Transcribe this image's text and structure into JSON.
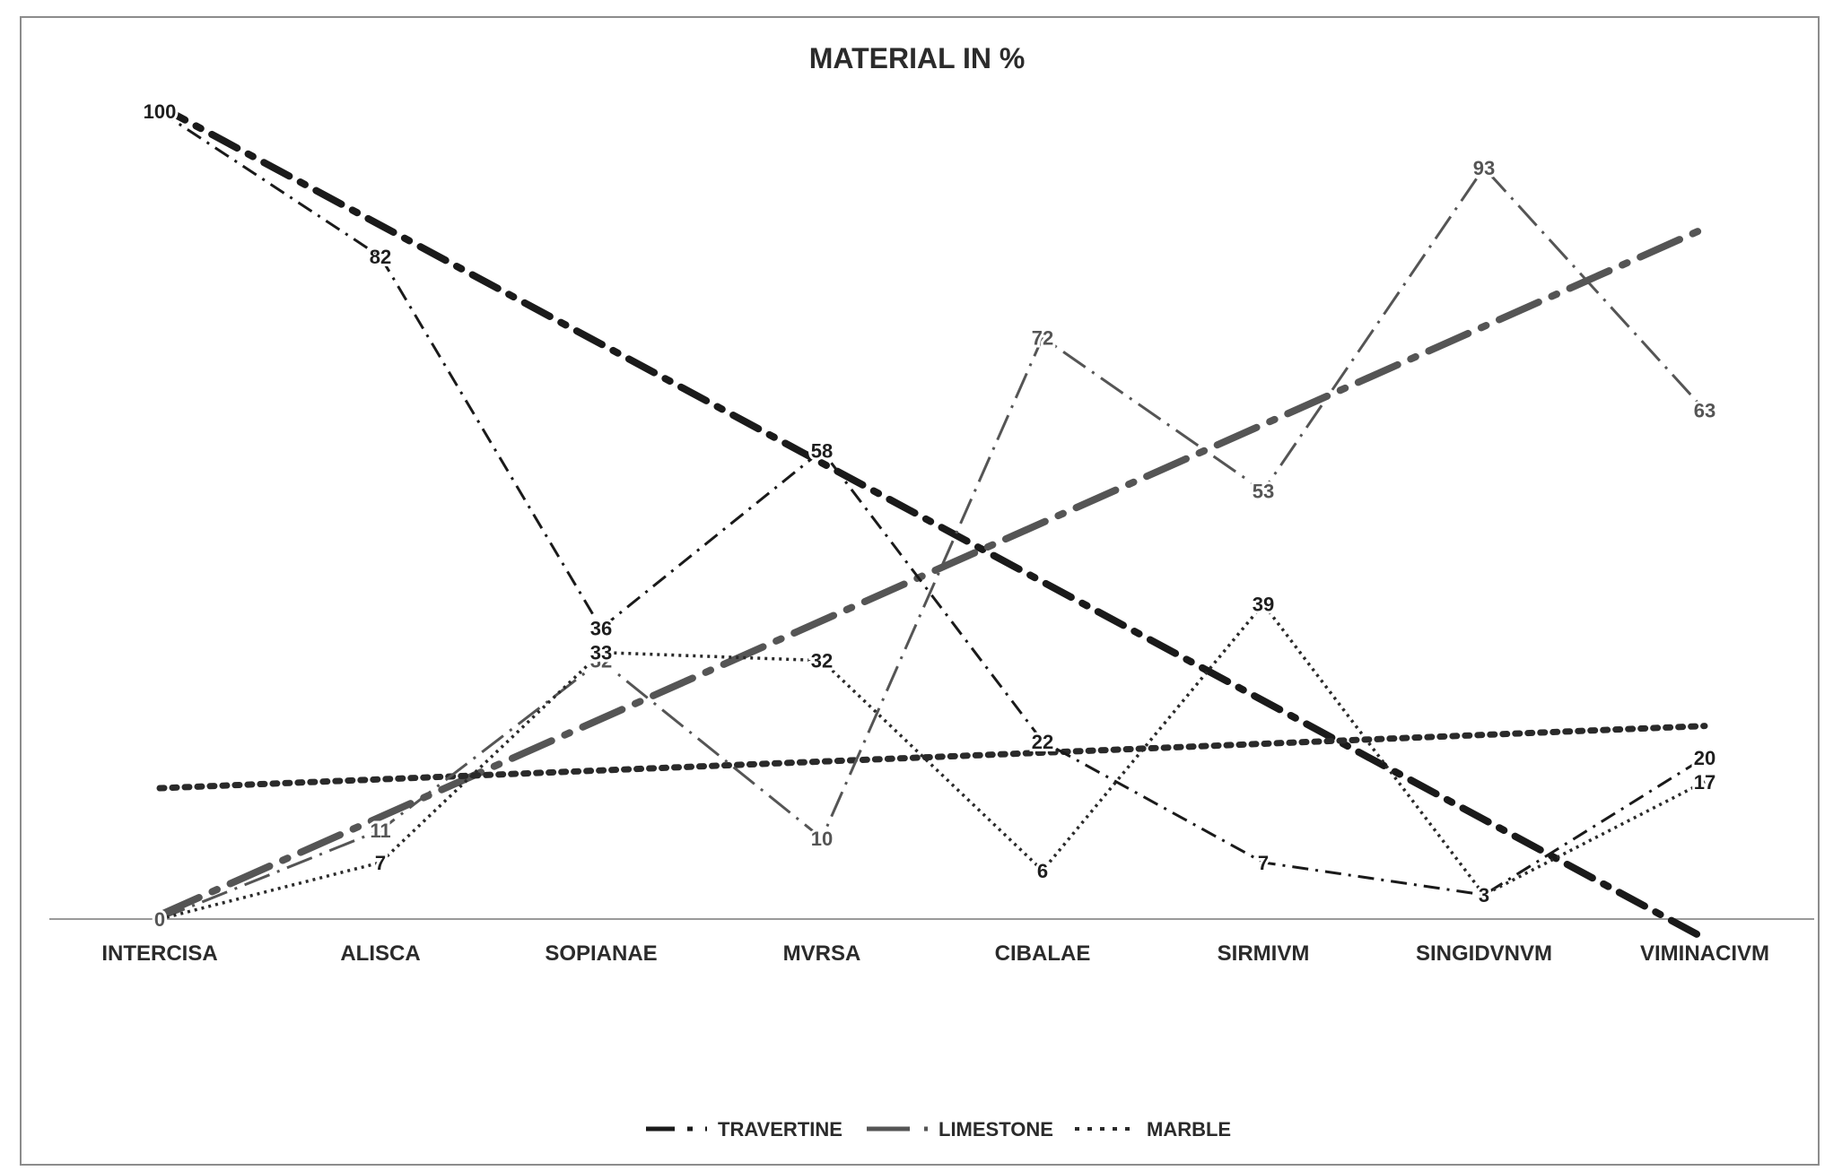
{
  "chart_data": {
    "type": "line",
    "title": "MATERIAL IN %",
    "xlabel": "",
    "ylabel": "",
    "ylim": [
      0,
      100
    ],
    "grid": false,
    "legend_position": "bottom",
    "categories": [
      "INTERCISA",
      "ALISCA",
      "SOPIANAE",
      "MVRSA",
      "CIBALAE",
      "SIRMIVM",
      "SINGIDVNVM",
      "VIMINACIVM"
    ],
    "series": [
      {
        "name": "TRAVERTINE",
        "values": [
          100,
          82,
          36,
          58,
          22,
          7,
          3,
          20
        ],
        "color": "#1a1a1a",
        "dash": "dash-dot"
      },
      {
        "name": "LIMESTONE",
        "values": [
          0,
          11,
          32,
          10,
          72,
          53,
          93,
          63
        ],
        "color": "#555555",
        "dash": "long-dash-dot"
      },
      {
        "name": "MARBLE",
        "values": [
          0,
          7,
          33,
          32,
          6,
          39,
          3,
          17
        ],
        "color": "#2a2a2a",
        "dash": "dotted"
      }
    ],
    "trendlines": [
      {
        "series": "TRAVERTINE",
        "start": 100.6,
        "end": -2.4
      },
      {
        "series": "LIMESTONE",
        "start": 0.5,
        "end": 85.5
      },
      {
        "series": "MARBLE",
        "start": 16.2,
        "end": 23.9
      }
    ],
    "data_labels": [
      {
        "series": "TRAVERTINE",
        "labels": [
          "100",
          "82",
          "36",
          "58",
          "22",
          "7",
          "3",
          "20"
        ]
      },
      {
        "series": "LIMESTONE",
        "labels": [
          "0",
          "11",
          "32",
          "10",
          "72",
          "53",
          "93",
          "63"
        ]
      },
      {
        "series": "MARBLE",
        "labels": [
          "",
          "7",
          "33",
          "32",
          "6",
          "39",
          "",
          "17"
        ]
      }
    ]
  }
}
